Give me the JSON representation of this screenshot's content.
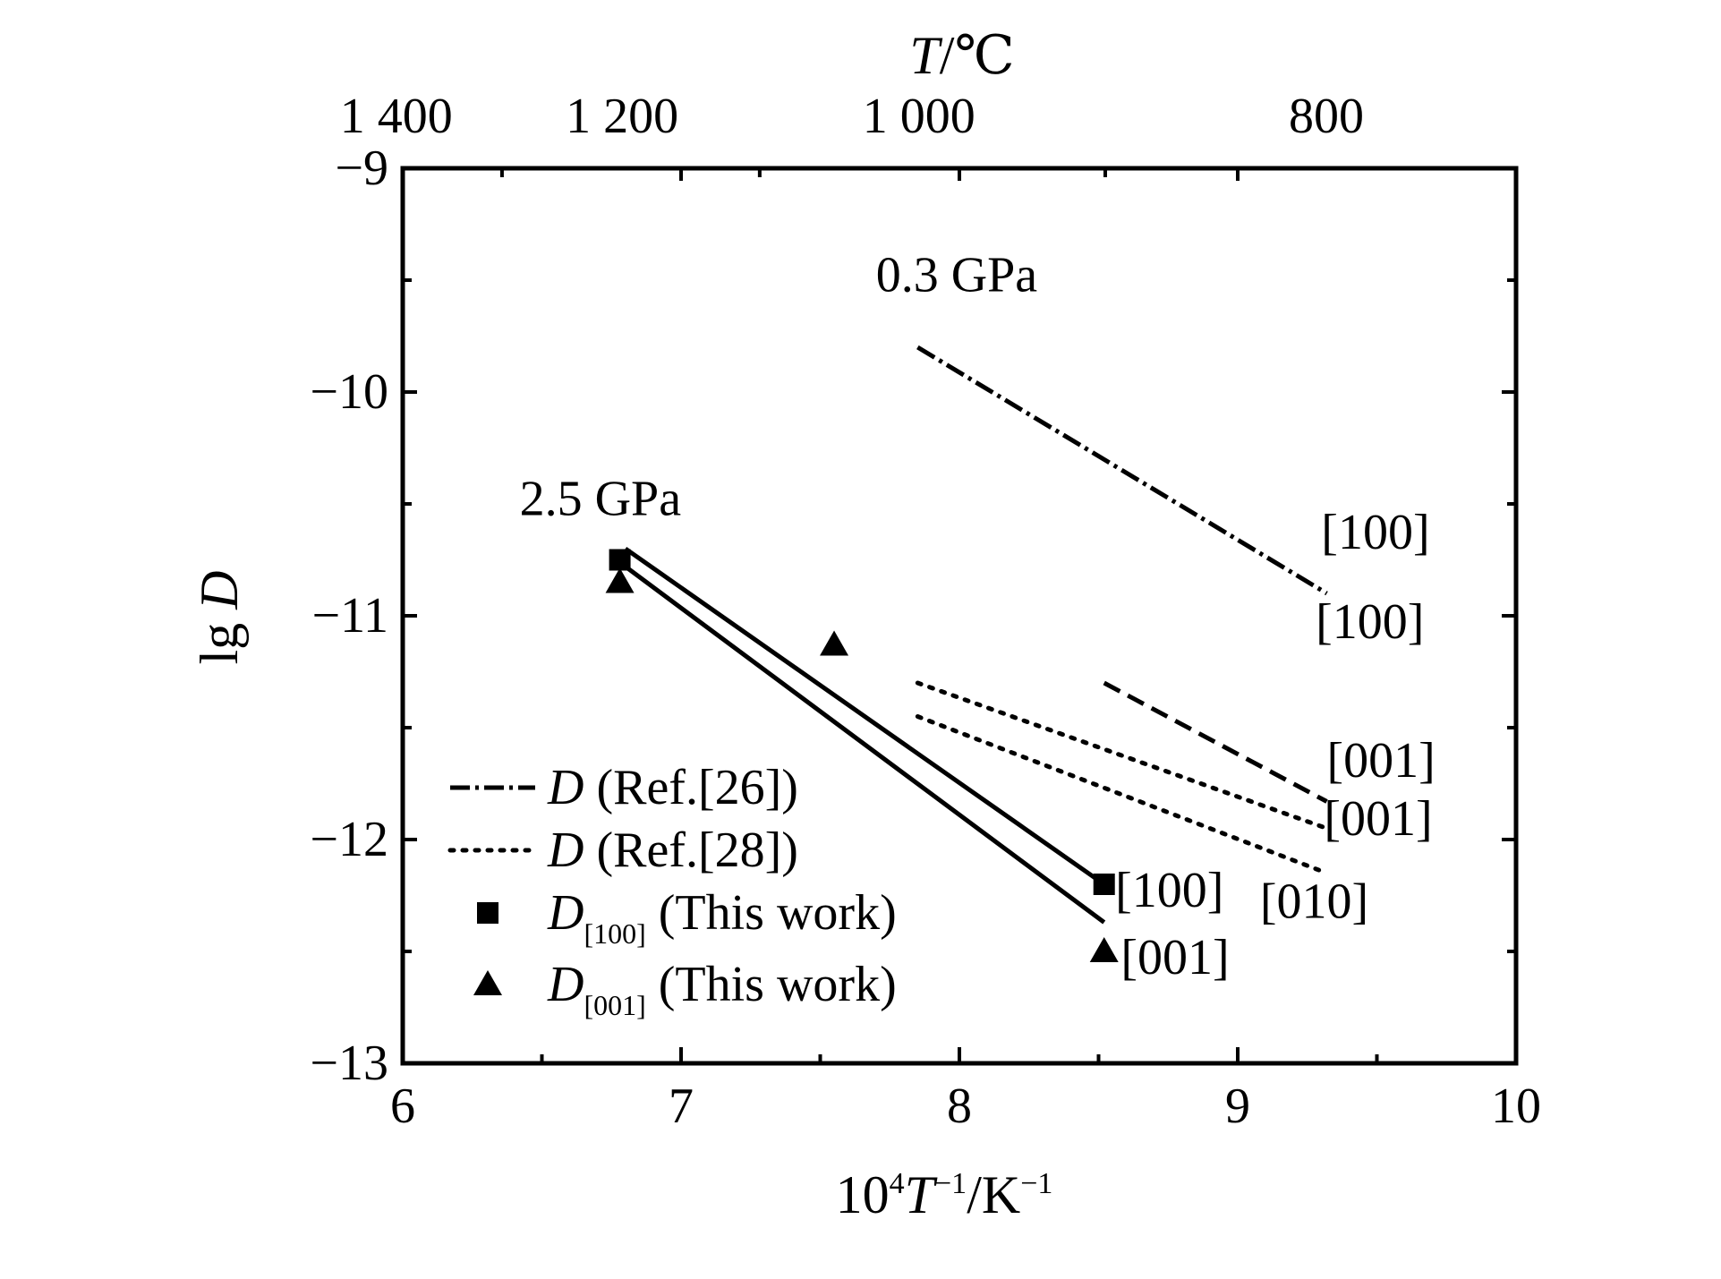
{
  "chart_data": {
    "type": "line",
    "title": "",
    "xlabel": {
      "base": "10",
      "sup1": "4",
      "var": "T",
      "sup2": "−1",
      "unit": "/K",
      "sup3": "−1"
    },
    "ylabel": {
      "prefix": "lg",
      "var": "D"
    },
    "top_xlabel": {
      "var": "T",
      "unit": "/℃"
    },
    "xlim": [
      6,
      10
    ],
    "ylim": [
      -13,
      -9
    ],
    "x_ticks": [
      6,
      7,
      8,
      9,
      10
    ],
    "x_tick_labels": [
      "6",
      "7",
      "8",
      "9",
      "10"
    ],
    "y_ticks": [
      -13,
      -12,
      -11,
      -10,
      -9
    ],
    "y_tick_labels": [
      "−13",
      "−12",
      "−11",
      "−10",
      "−9"
    ],
    "top_ticks": [
      {
        "celsius": 1400,
        "label": "1 400"
      },
      {
        "celsius": 1200,
        "label": "1 200"
      },
      {
        "celsius": 1000,
        "label": "1 000"
      },
      {
        "celsius": 800,
        "label": "800"
      }
    ],
    "series": [
      {
        "name": "D[100] (This work) fit",
        "style": "solid",
        "x": [
          6.8,
          8.52
        ],
        "y": [
          -10.7,
          -12.2
        ]
      },
      {
        "name": "D[001] (This work) fit",
        "style": "solid",
        "x": [
          6.8,
          8.52
        ],
        "y": [
          -10.78,
          -12.37
        ]
      },
      {
        "name": "Ref.[26] [100]",
        "style": "dashdot",
        "x": [
          7.85,
          9.32
        ],
        "y": [
          -9.8,
          -10.9
        ]
      },
      {
        "name": "Ref.[26] [001]",
        "style": "dashed",
        "x": [
          8.52,
          9.32
        ],
        "y": [
          -11.3,
          -11.83
        ]
      },
      {
        "name": "Ref.[28] [001]",
        "style": "dotted",
        "x": [
          7.85,
          9.32
        ],
        "y": [
          -11.3,
          -11.95
        ]
      },
      {
        "name": "Ref.[28] [010]",
        "style": "dotted",
        "x": [
          7.85,
          9.32
        ],
        "y": [
          -11.45,
          -12.15
        ]
      }
    ],
    "points": [
      {
        "series": "D[100]",
        "marker": "square",
        "x": 6.78,
        "y": -10.75
      },
      {
        "series": "D[100]",
        "marker": "square",
        "x": 8.52,
        "y": -12.2
      },
      {
        "series": "D[001]",
        "marker": "triangle",
        "x": 6.78,
        "y": -10.85
      },
      {
        "series": "D[001]",
        "marker": "triangle",
        "x": 7.55,
        "y": -11.13
      },
      {
        "series": "D[001]",
        "marker": "triangle",
        "x": 8.52,
        "y": -12.5
      }
    ],
    "annotations": [
      {
        "text": "0.3 GPa",
        "x": 7.7,
        "y": -9.55
      },
      {
        "text": "2.5 GPa",
        "x": 6.42,
        "y": -10.55
      },
      {
        "text": "[100]",
        "x": 9.3,
        "y": -10.7
      },
      {
        "text": "[100]",
        "x": 9.28,
        "y": -11.1
      },
      {
        "text": "[001]",
        "x": 9.32,
        "y": -11.72
      },
      {
        "text": "[001]",
        "x": 9.31,
        "y": -11.98
      },
      {
        "text": "[100]",
        "x": 8.56,
        "y": -12.3
      },
      {
        "text": "[010]",
        "x": 9.08,
        "y": -12.35
      },
      {
        "text": "[001]",
        "x": 8.58,
        "y": -12.6
      }
    ],
    "legend": {
      "position": "bottom-left",
      "entries": [
        {
          "sym": "dashdot",
          "var": "D",
          "sub": "",
          "rest": " (Ref.[26])"
        },
        {
          "sym": "dotted",
          "var": "D",
          "sub": "",
          "rest": " (Ref.[28])"
        },
        {
          "sym": "square",
          "var": "D",
          "sub": "[100]",
          "rest": " (This work)"
        },
        {
          "sym": "triangle",
          "var": "D",
          "sub": "[001]",
          "rest": " (This work)"
        }
      ]
    }
  }
}
